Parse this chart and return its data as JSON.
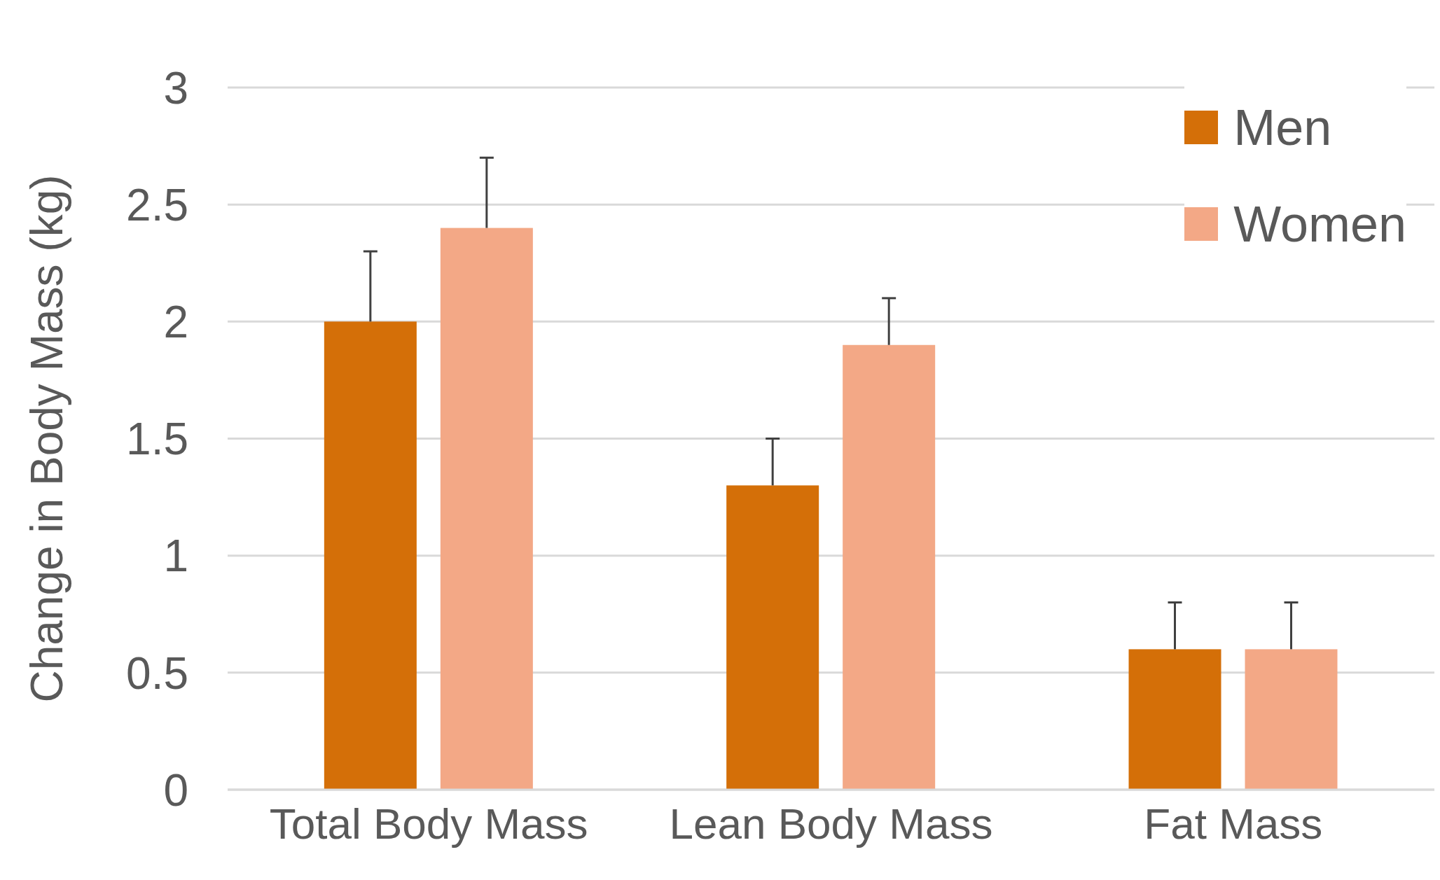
{
  "chart_data": {
    "type": "bar",
    "ylabel": "Change in Body Mass (kg)",
    "categories": [
      "Total Body Mass",
      "Lean Body Mass",
      "Fat Mass"
    ],
    "series": [
      {
        "name": "Men",
        "color": "#d46f08",
        "values": [
          2.0,
          1.3,
          0.6
        ],
        "errors": [
          [
            2.0,
            2.3
          ],
          [
            1.3,
            1.5
          ],
          [
            0.6,
            0.8
          ]
        ]
      },
      {
        "name": "Women",
        "color": "#f3a886",
        "values": [
          2.4,
          1.9,
          0.6
        ],
        "errors": [
          [
            2.4,
            2.7
          ],
          [
            1.9,
            2.1
          ],
          [
            0.6,
            0.8
          ]
        ]
      }
    ],
    "ylim": [
      0,
      3
    ],
    "yticks": [
      0,
      0.5,
      1,
      1.5,
      2,
      2.5,
      3
    ],
    "grid": "y",
    "legend": "top right"
  }
}
